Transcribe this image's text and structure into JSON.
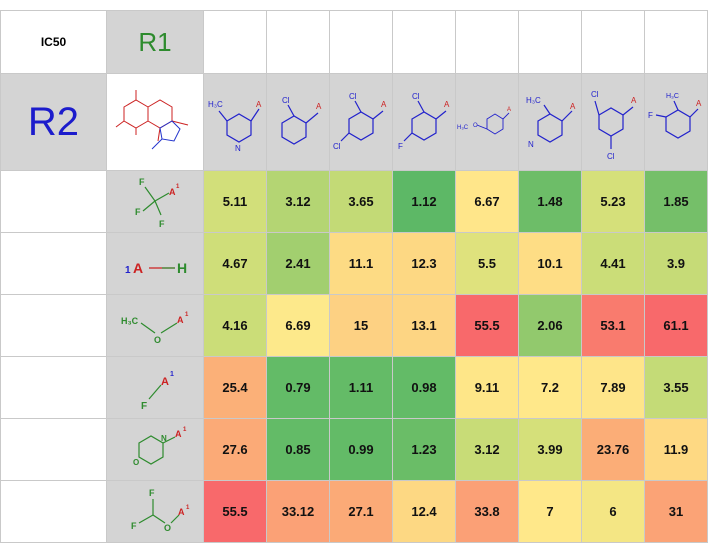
{
  "corner_label": "IC50",
  "r1_label": "R1",
  "r2_label": "R2",
  "core_icon": "core-scaffold-structure",
  "r1_columns": [
    {
      "icon": "methylpyridyl-structure",
      "labels": {
        "me": "H₃C",
        "a": "A",
        "n": "N"
      }
    },
    {
      "icon": "2-chlorophenyl-structure",
      "labels": {
        "cl": "Cl",
        "a": "A"
      }
    },
    {
      "icon": "2,4-dichlorophenyl-structure",
      "labels": {
        "cl1": "Cl",
        "cl2": "Cl",
        "a": "A"
      }
    },
    {
      "icon": "2-chloro-4-fluorophenyl-structure",
      "labels": {
        "cl": "Cl",
        "f": "F",
        "a": "A"
      }
    },
    {
      "icon": "methoxyphenyl-structure",
      "labels": {
        "me": "H₃C",
        "o": "O",
        "a": "A"
      }
    },
    {
      "icon": "methylpyridyl-structure-2",
      "labels": {
        "me": "H₃C",
        "a": "A",
        "n": "N"
      }
    },
    {
      "icon": "2,5-dichlorophenyl-structure",
      "labels": {
        "cl1": "Cl",
        "cl2": "Cl",
        "a": "A"
      }
    },
    {
      "icon": "fluoro-methylphenyl-structure",
      "labels": {
        "me": "H₃C",
        "f": "F",
        "a": "A"
      }
    }
  ],
  "r2_rows": [
    {
      "icon": "trifluoromethyl-structure",
      "labels": {
        "f1": "F",
        "f2": "F",
        "f3": "F",
        "a": "A",
        "sup": "1"
      },
      "values": [
        "5.11",
        "3.12",
        "3.65",
        "1.12",
        "6.67",
        "1.48",
        "5.23",
        "1.85"
      ],
      "colors": [
        "#d2df7a",
        "#b4d573",
        "#c3da76",
        "#5db866",
        "#ffe68a",
        "#6dbd68",
        "#d5e07a",
        "#75bf69"
      ]
    },
    {
      "icon": "hydrogen-structure",
      "labels": {
        "one": "1",
        "a": "A",
        "h": "H"
      },
      "values": [
        "4.67",
        "2.41",
        "11.1",
        "12.3",
        "5.5",
        "10.1",
        "4.41",
        "3.9"
      ],
      "colors": [
        "#cfde79",
        "#a2cf6f",
        "#fddb84",
        "#fdd883",
        "#dfe27d",
        "#fedd85",
        "#cbdd78",
        "#c6db77"
      ]
    },
    {
      "icon": "methoxy-structure",
      "labels": {
        "me": "H₃C",
        "o": "O",
        "a": "A",
        "sup": "1"
      },
      "values": [
        "4.16",
        "6.69",
        "15",
        "13.1",
        "55.5",
        "2.06",
        "53.1",
        "61.1"
      ],
      "colors": [
        "#cbdd78",
        "#fde98b",
        "#fdd183",
        "#fdd583",
        "#f8696b",
        "#92c96d",
        "#f97b6e",
        "#f8696b"
      ]
    },
    {
      "icon": "fluoro-structure",
      "labels": {
        "f": "F",
        "a": "A",
        "sup": "1"
      },
      "values": [
        "25.4",
        "0.79",
        "1.11",
        "0.98",
        "9.11",
        "7.2",
        "7.89",
        "3.55"
      ],
      "colors": [
        "#fbb078",
        "#63bb67",
        "#64bb67",
        "#63bb67",
        "#fee688",
        "#ffe88a",
        "#fee589",
        "#c4db77"
      ]
    },
    {
      "icon": "morpholine-structure",
      "labels": {
        "n": "N",
        "o": "O",
        "a": "A",
        "sup": "1"
      },
      "values": [
        "27.6",
        "0.85",
        "0.99",
        "1.23",
        "3.12",
        "3.99",
        "23.76",
        "11.9"
      ],
      "colors": [
        "#fbaa77",
        "#63bb67",
        "#63bb67",
        "#6abd67",
        "#c8dc77",
        "#d5e07a",
        "#fbad77",
        "#fed983"
      ]
    },
    {
      "icon": "difluoromethoxy-structure",
      "labels": {
        "f1": "F",
        "f2": "F",
        "o": "O",
        "a": "A",
        "sup": "1"
      },
      "values": [
        "55.5",
        "33.12",
        "27.1",
        "12.4",
        "33.8",
        "7",
        "6",
        "31"
      ],
      "colors": [
        "#f8696b",
        "#fba176",
        "#fbaa77",
        "#fdd883",
        "#fba076",
        "#ffe88a",
        "#f4e684",
        "#fba376"
      ]
    }
  ]
}
